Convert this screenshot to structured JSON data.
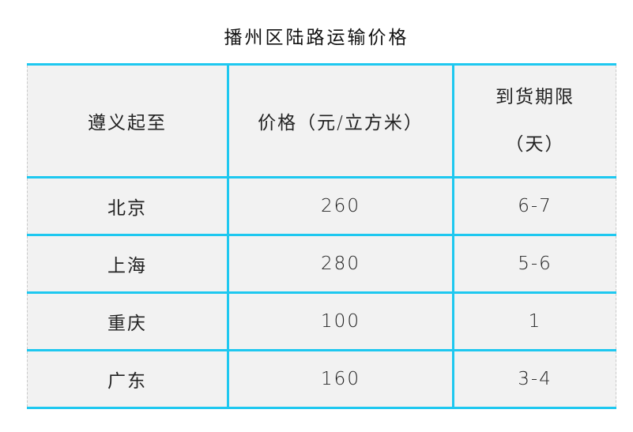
{
  "title": "播州区陆路运输价格",
  "headers": [
    "遵义起至",
    "价格（元/立方米）",
    "到货期限",
    "（天）"
  ],
  "rows": [
    {
      "dest": "北京",
      "price": "260",
      "days": "6-7"
    },
    {
      "dest": "上海",
      "price": "280",
      "days": "5-6"
    },
    {
      "dest": "重庆",
      "price": "100",
      "days": "1"
    },
    {
      "dest": "广东",
      "price": "160",
      "days": "3-4"
    }
  ],
  "colors": {
    "border": "#1ec8f0",
    "cell_bg": "#f2f2f2"
  }
}
